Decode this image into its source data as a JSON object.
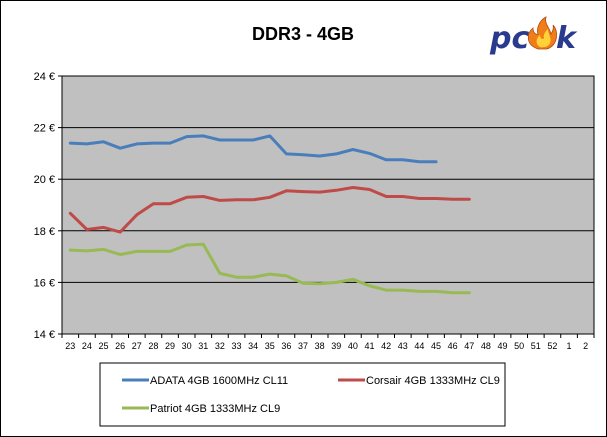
{
  "chart_data": {
    "type": "line",
    "title": "DDR3 - 4GB",
    "ylim": [
      14,
      24
    ],
    "y_ticks": [
      "14 €",
      "16 €",
      "18 €",
      "20 €",
      "22 €",
      "24 €"
    ],
    "y_tick_values": [
      14,
      16,
      18,
      20,
      22,
      24
    ],
    "categories": [
      "23",
      "24",
      "25",
      "26",
      "27",
      "28",
      "29",
      "30",
      "31",
      "32",
      "33",
      "34",
      "35",
      "36",
      "37",
      "38",
      "39",
      "40",
      "41",
      "42",
      "43",
      "44",
      "45",
      "46",
      "47",
      "48",
      "49",
      "50",
      "51",
      "52",
      "1",
      "2"
    ],
    "grid": true,
    "legend_position": "bottom",
    "series": [
      {
        "name": "ADATA 4GB 1600MHz CL11",
        "color": "#4a7ebb",
        "values": [
          21.4,
          21.37,
          21.45,
          21.2,
          21.37,
          21.4,
          21.4,
          21.65,
          21.68,
          21.52,
          21.52,
          21.52,
          21.68,
          20.98,
          20.95,
          20.9,
          20.98,
          21.15,
          21.0,
          20.75,
          20.75,
          20.68,
          20.68,
          null,
          null,
          null,
          null,
          null,
          null,
          null,
          null,
          null
        ]
      },
      {
        "name": "Corsair 4GB 1333MHz CL9",
        "color": "#be4b48",
        "values": [
          18.68,
          18.05,
          18.13,
          17.95,
          18.62,
          19.05,
          19.05,
          19.3,
          19.33,
          19.18,
          19.2,
          19.2,
          19.3,
          19.55,
          19.52,
          19.5,
          19.57,
          19.68,
          19.6,
          19.33,
          19.33,
          19.25,
          19.25,
          19.22,
          19.22,
          null,
          null,
          null,
          null,
          null,
          null,
          null
        ]
      },
      {
        "name": "Patriot 4GB 1333MHz CL9",
        "color": "#98b954",
        "values": [
          17.25,
          17.22,
          17.28,
          17.08,
          17.2,
          17.2,
          17.2,
          17.45,
          17.48,
          16.35,
          16.2,
          16.2,
          16.32,
          16.25,
          15.97,
          15.95,
          16.0,
          16.12,
          15.87,
          15.7,
          15.7,
          15.65,
          15.65,
          15.6,
          15.6,
          null,
          null,
          null,
          null,
          null,
          null,
          null
        ]
      }
    ]
  },
  "logo": {
    "text": "pcsk",
    "colors": {
      "text": "#2a3a8c",
      "flame_outer": "#f07d1a",
      "flame_inner": "#ffd23a"
    }
  },
  "colors": {
    "plot_background": "#c0c0c0",
    "gridline": "#000000",
    "border": "#000000"
  }
}
